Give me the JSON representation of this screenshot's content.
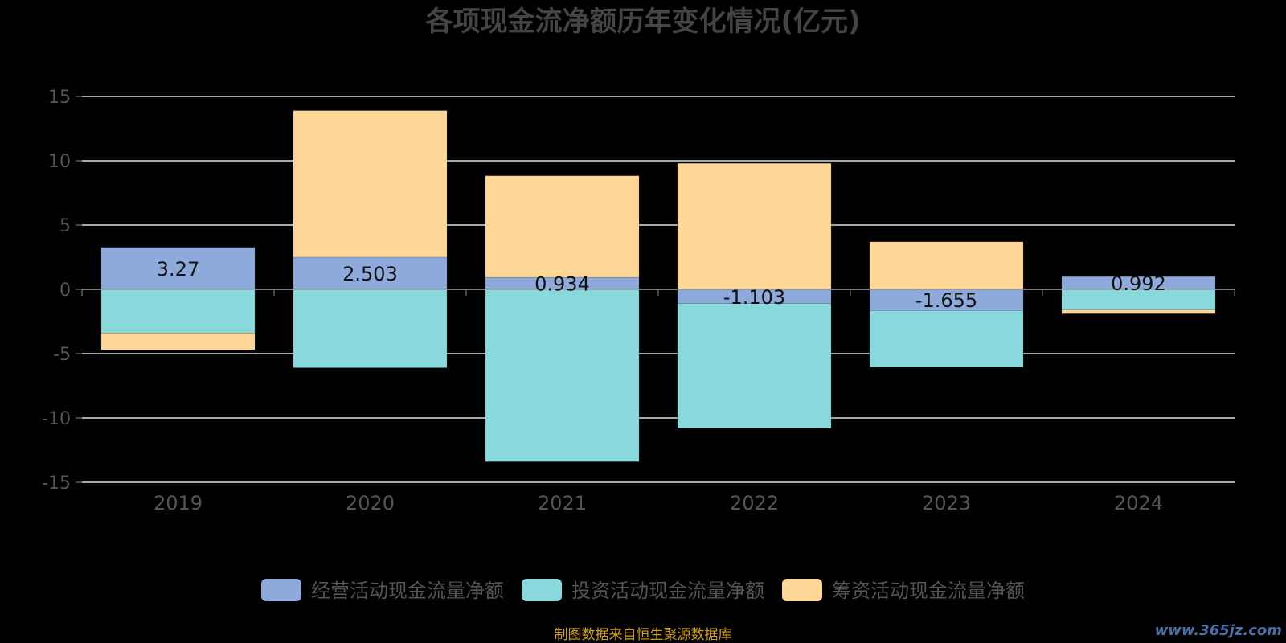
{
  "chart_data": {
    "type": "bar",
    "stacked": true,
    "title": "各项现金流净额历年变化情况(亿元)",
    "categories": [
      "2019",
      "2020",
      "2021",
      "2022",
      "2023",
      "2024"
    ],
    "ylim": [
      -15,
      15
    ],
    "yticks": [
      15,
      10,
      5,
      0,
      -5,
      -10,
      -15
    ],
    "grid": true,
    "legend_position": "bottom",
    "series": [
      {
        "name": "经营活动现金流量净额",
        "color": "#8eaadb",
        "values": [
          3.27,
          2.503,
          0.934,
          -1.103,
          -1.655,
          0.992
        ],
        "labels": [
          "3.27",
          "2.503",
          "0.934",
          "-1.103",
          "-1.655",
          "0.992"
        ]
      },
      {
        "name": "投资活动现金流量净额",
        "color": "#88d8dc",
        "values": [
          -3.4,
          -6.1,
          -13.4,
          -9.7,
          -4.4,
          -1.6
        ]
      },
      {
        "name": "筹资活动现金流量净额",
        "color": "#ffd797",
        "values": [
          -1.3,
          11.4,
          7.9,
          9.8,
          3.7,
          -0.3
        ]
      }
    ]
  },
  "source_note": "制图数据来自恒生聚源数据库",
  "watermark": "www.365jz.com"
}
